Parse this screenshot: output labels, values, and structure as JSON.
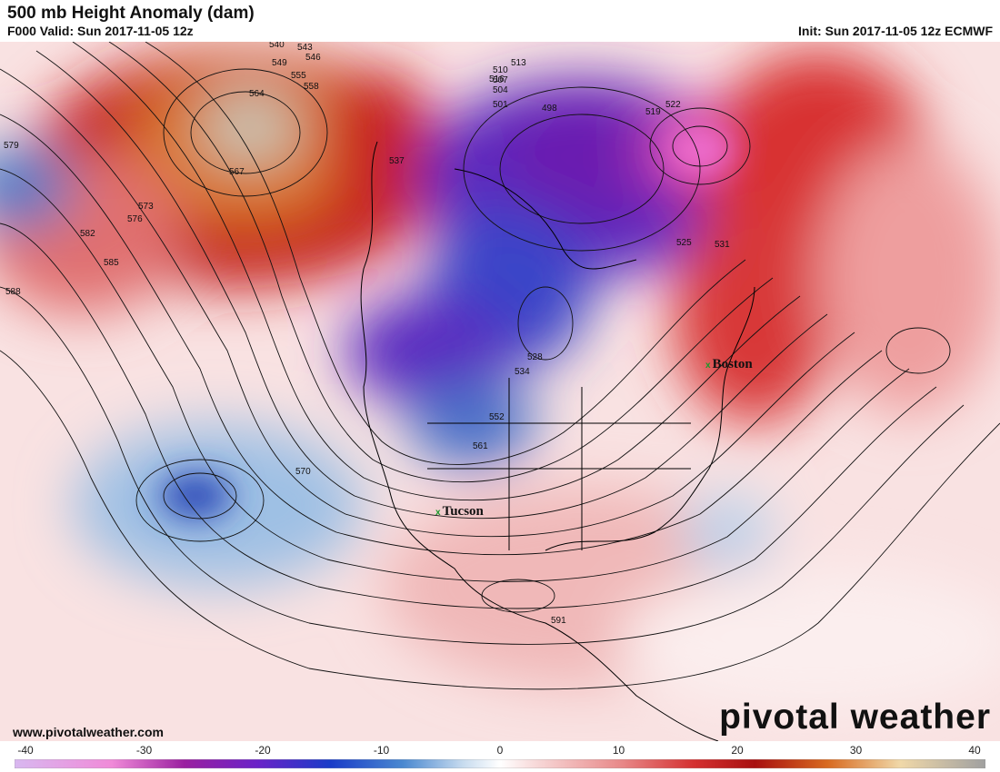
{
  "header": {
    "title": "500 mb Height Anomaly (dam)",
    "valid": "F000 Valid: Sun 2017-11-05 12z",
    "init": "Init: Sun 2017-11-05 12z ECMWF"
  },
  "watermark": {
    "logo": "pivotal weather",
    "url": "www.pivotalweather.com"
  },
  "cities": [
    {
      "name": "Boston",
      "marker": "x"
    },
    {
      "name": "Tucson",
      "marker": "x"
    }
  ],
  "colorbar": {
    "ticks": [
      "-40",
      "-30",
      "-20",
      "-10",
      "0",
      "10",
      "20",
      "30",
      "40"
    ],
    "min": -40,
    "max": 40,
    "stops": [
      {
        "v": -40,
        "c": "#d8b8f0"
      },
      {
        "v": -32,
        "c": "#f08ad8"
      },
      {
        "v": -26,
        "c": "#9a20a0"
      },
      {
        "v": -20,
        "c": "#6a22c8"
      },
      {
        "v": -14,
        "c": "#1a3cc8"
      },
      {
        "v": -8,
        "c": "#4a88d0"
      },
      {
        "v": -3,
        "c": "#c8dcef"
      },
      {
        "v": 0,
        "c": "#ffffff"
      },
      {
        "v": 3,
        "c": "#f7d8d8"
      },
      {
        "v": 10,
        "c": "#e88888"
      },
      {
        "v": 16,
        "c": "#d43030"
      },
      {
        "v": 21,
        "c": "#a81010"
      },
      {
        "v": 27,
        "c": "#d86a20"
      },
      {
        "v": 33,
        "c": "#f0d8a8"
      },
      {
        "v": 40,
        "c": "#a0a0a0"
      }
    ]
  },
  "contour_labels": [
    "540",
    "543",
    "546",
    "549",
    "555",
    "558",
    "564",
    "567",
    "579",
    "573",
    "576",
    "582",
    "585",
    "588",
    "537",
    "516",
    "513",
    "510",
    "507",
    "504",
    "501",
    "498",
    "519",
    "522",
    "525",
    "528",
    "531",
    "534",
    "552",
    "561",
    "570",
    "591"
  ],
  "legend_colors": {
    "low": "#6a22c8",
    "high": "#a81010",
    "neutral": "#ffffff"
  }
}
